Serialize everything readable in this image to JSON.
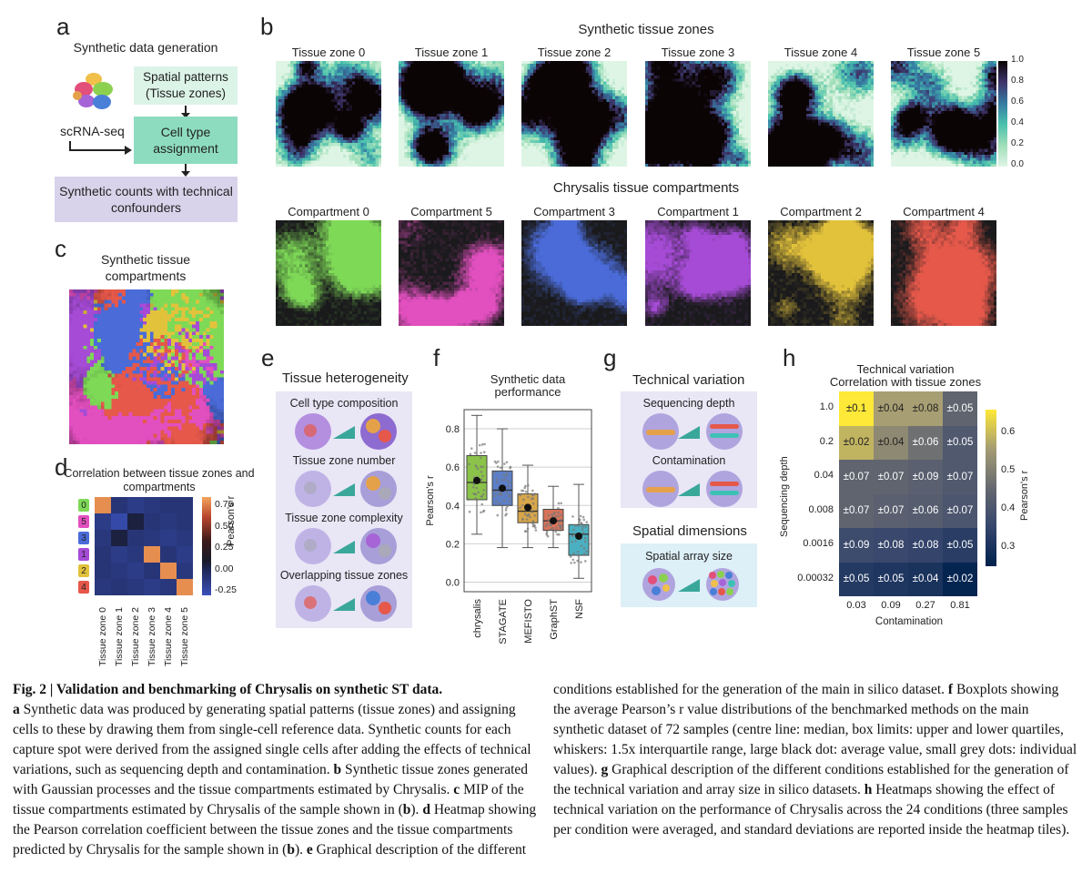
{
  "panels": {
    "a": {
      "label": "a",
      "title": "Synthetic data generation",
      "spatial_box": "Spatial patterns (Tissue zones)",
      "scrna": "scRNA-seq",
      "celltype_box": "Cell type assignment",
      "counts_box": "Synthetic counts with technical confounders"
    },
    "b": {
      "label": "b",
      "top_title": "Synthetic tissue zones",
      "zones": [
        "Tissue zone 0",
        "Tissue zone 1",
        "Tissue zone 2",
        "Tissue zone 3",
        "Tissue zone 4",
        "Tissue zone 5"
      ],
      "colorbar_ticks": [
        "1.0",
        "0.8",
        "0.6",
        "0.4",
        "0.2",
        "0.0"
      ],
      "bottom_title": "Chrysalis tissue compartments",
      "compartments": [
        "Compartment 0",
        "Compartment 5",
        "Compartment 3",
        "Compartment 1",
        "Compartment 2",
        "Compartment 4"
      ],
      "compartment_colors": [
        "#7ed957",
        "#e24fbf",
        "#4a6bd8",
        "#a64bd6",
        "#e3c23b",
        "#e5584a"
      ]
    },
    "c": {
      "label": "c",
      "title": "Synthetic tissue compartments"
    },
    "d": {
      "label": "d",
      "title": "Correlation between tissue zones and compartments",
      "row_labels": [
        "0",
        "5",
        "3",
        "1",
        "2",
        "4"
      ],
      "col_labels": [
        "Tissue zone 0",
        "Tissue zone 1",
        "Tissue zone 2",
        "Tissue zone 3",
        "Tissue zone 4",
        "Tissue zone 5"
      ],
      "colorbar_ticks": [
        "0.75",
        "0.50",
        "0.25",
        "0.00",
        "-0.25"
      ],
      "colorbar_label": "Pearson's r"
    },
    "e": {
      "label": "e",
      "title": "Tissue heterogeneity",
      "items": [
        "Cell type composition",
        "Tissue zone number",
        "Tissue zone complexity",
        "Overlapping tissue zones"
      ]
    },
    "f": {
      "label": "f",
      "title": "Synthetic data performance"
    },
    "g": {
      "label": "g",
      "title": "Technical variation",
      "items": [
        "Sequencing depth",
        "Contamination"
      ],
      "title2": "Spatial dimensions",
      "items2": [
        "Spatial array size"
      ]
    },
    "h": {
      "label": "h",
      "title_line1": "Technical variation",
      "title_line2": "Correlation with tissue zones",
      "ylabel": "Sequencing depth",
      "xlabel": "Contamination",
      "row_labels": [
        "1.0",
        "0.2",
        "0.04",
        "0.008",
        "0.0016",
        "0.00032"
      ],
      "col_labels": [
        "0.03",
        "0.09",
        "0.27",
        "0.81"
      ],
      "cells": [
        [
          "±0.1",
          "±0.04",
          "±0.08",
          "±0.05"
        ],
        [
          "±0.02",
          "±0.04",
          "±0.06",
          "±0.05"
        ],
        [
          "±0.07",
          "±0.07",
          "±0.09",
          "±0.07"
        ],
        [
          "±0.07",
          "±0.07",
          "±0.06",
          "±0.07"
        ],
        [
          "±0.09",
          "±0.08",
          "±0.08",
          "±0.05"
        ],
        [
          "±0.05",
          "±0.05",
          "±0.04",
          "±0.02"
        ]
      ],
      "colorbar_ticks": [
        "0.6",
        "0.5",
        "0.4",
        "0.3"
      ],
      "colorbar_label": "Pearson's r"
    }
  },
  "chart_data": [
    {
      "type": "box",
      "panel": "f",
      "title": "Synthetic data performance",
      "ylabel": "Pearson's r",
      "categories": [
        "chrysalis",
        "STAGATE",
        "MEFISTO",
        "GraphST",
        "NSF"
      ],
      "colors": [
        "#8bc34a",
        "#5c7fc7",
        "#d7a64a",
        "#d8735a",
        "#4ab0c1"
      ],
      "ylim": [
        -0.05,
        0.9
      ],
      "yticks": [
        0.0,
        0.2,
        0.4,
        0.6,
        0.8
      ],
      "median": [
        0.52,
        0.48,
        0.37,
        0.32,
        0.25
      ],
      "q1": [
        0.43,
        0.4,
        0.31,
        0.27,
        0.14
      ],
      "q3": [
        0.66,
        0.58,
        0.46,
        0.38,
        0.3
      ],
      "whisker_low": [
        0.25,
        0.18,
        0.18,
        0.18,
        0.02
      ],
      "whisker_high": [
        0.87,
        0.8,
        0.61,
        0.5,
        0.51
      ],
      "mean": [
        0.53,
        0.49,
        0.39,
        0.32,
        0.24
      ]
    },
    {
      "type": "heatmap",
      "panel": "h",
      "title": "Technical variation Correlation with tissue zones",
      "xlabel": "Contamination",
      "ylabel": "Sequencing depth",
      "x": [
        "0.03",
        "0.09",
        "0.27",
        "0.81"
      ],
      "y": [
        "1.0",
        "0.2",
        "0.04",
        "0.008",
        "0.0016",
        "0.00032"
      ],
      "values": [
        [
          0.66,
          0.56,
          0.56,
          0.44
        ],
        [
          0.59,
          0.52,
          0.47,
          0.41
        ],
        [
          0.44,
          0.44,
          0.43,
          0.41
        ],
        [
          0.44,
          0.43,
          0.42,
          0.4
        ],
        [
          0.37,
          0.36,
          0.35,
          0.33
        ],
        [
          0.32,
          0.31,
          0.3,
          0.26
        ]
      ],
      "vmin": 0.25,
      "vmax": 0.66
    },
    {
      "type": "heatmap",
      "panel": "d",
      "title": "Correlation between tissue zones and compartments",
      "values": [
        [
          0.8,
          -0.1,
          -0.15,
          -0.12,
          -0.1,
          -0.1
        ],
        [
          -0.15,
          -0.25,
          0.05,
          -0.1,
          -0.12,
          -0.1
        ],
        [
          -0.12,
          0.05,
          -0.1,
          -0.12,
          -0.15,
          -0.12
        ],
        [
          -0.1,
          -0.15,
          -0.12,
          0.8,
          -0.1,
          -0.15
        ],
        [
          -0.1,
          -0.12,
          -0.15,
          -0.1,
          0.8,
          -0.12
        ],
        [
          -0.12,
          -0.1,
          -0.12,
          -0.15,
          -0.12,
          0.8
        ]
      ],
      "vmin": -0.3,
      "vmax": 0.85
    }
  ],
  "caption": {
    "heading": "Fig. 2 | Validation and benchmarking of Chrysalis on synthetic ST data.",
    "left": [
      {
        "bold": "a",
        "text": " Synthetic data was produced by generating spatial patterns (tissue zones) and assigning cells to these by drawing them from single-cell reference data. Synthetic counts for each capture spot were derived from the assigned single cells after adding the effects of technical variations, such as sequencing depth and contamination. "
      },
      {
        "bold": "b",
        "text": " Synthetic tissue zones generated with Gaussian processes and the tissue compartments estimated by Chrysalis. "
      },
      {
        "bold": "c",
        "text": " MIP of the tissue compartments estimated by Chrysalis of the sample shown in ("
      },
      {
        "bold": "b",
        "text": "). "
      },
      {
        "bold": "d",
        "text": " Heatmap showing the Pearson correlation coefficient between the tissue zones and the tissue compartments predicted by Chrysalis for the sample shown in ("
      },
      {
        "bold": "b",
        "text": "). "
      },
      {
        "bold": "e",
        "text": " Graphical description of the different"
      }
    ],
    "right": [
      {
        "bold": "",
        "text": "conditions established for the generation of the main in silico dataset. "
      },
      {
        "bold": "f",
        "text": " Boxplots showing the average Pearson’s r value distributions of the benchmarked methods on the main synthetic dataset of 72 samples (centre line: median, box limits: upper and lower quartiles, whiskers: 1.5x interquartile range, large black dot: average value, small grey dots: individual values). "
      },
      {
        "bold": "g",
        "text": " Graphical description of the different conditions established for the generation of the technical variation and array size in silico datasets. "
      },
      {
        "bold": "h",
        "text": " Heatmaps showing the effect of technical variation on the performance of Chrysalis across the 24 conditions (three samples per condition were averaged, and standard deviations are reported inside the heatmap tiles)."
      }
    ]
  }
}
